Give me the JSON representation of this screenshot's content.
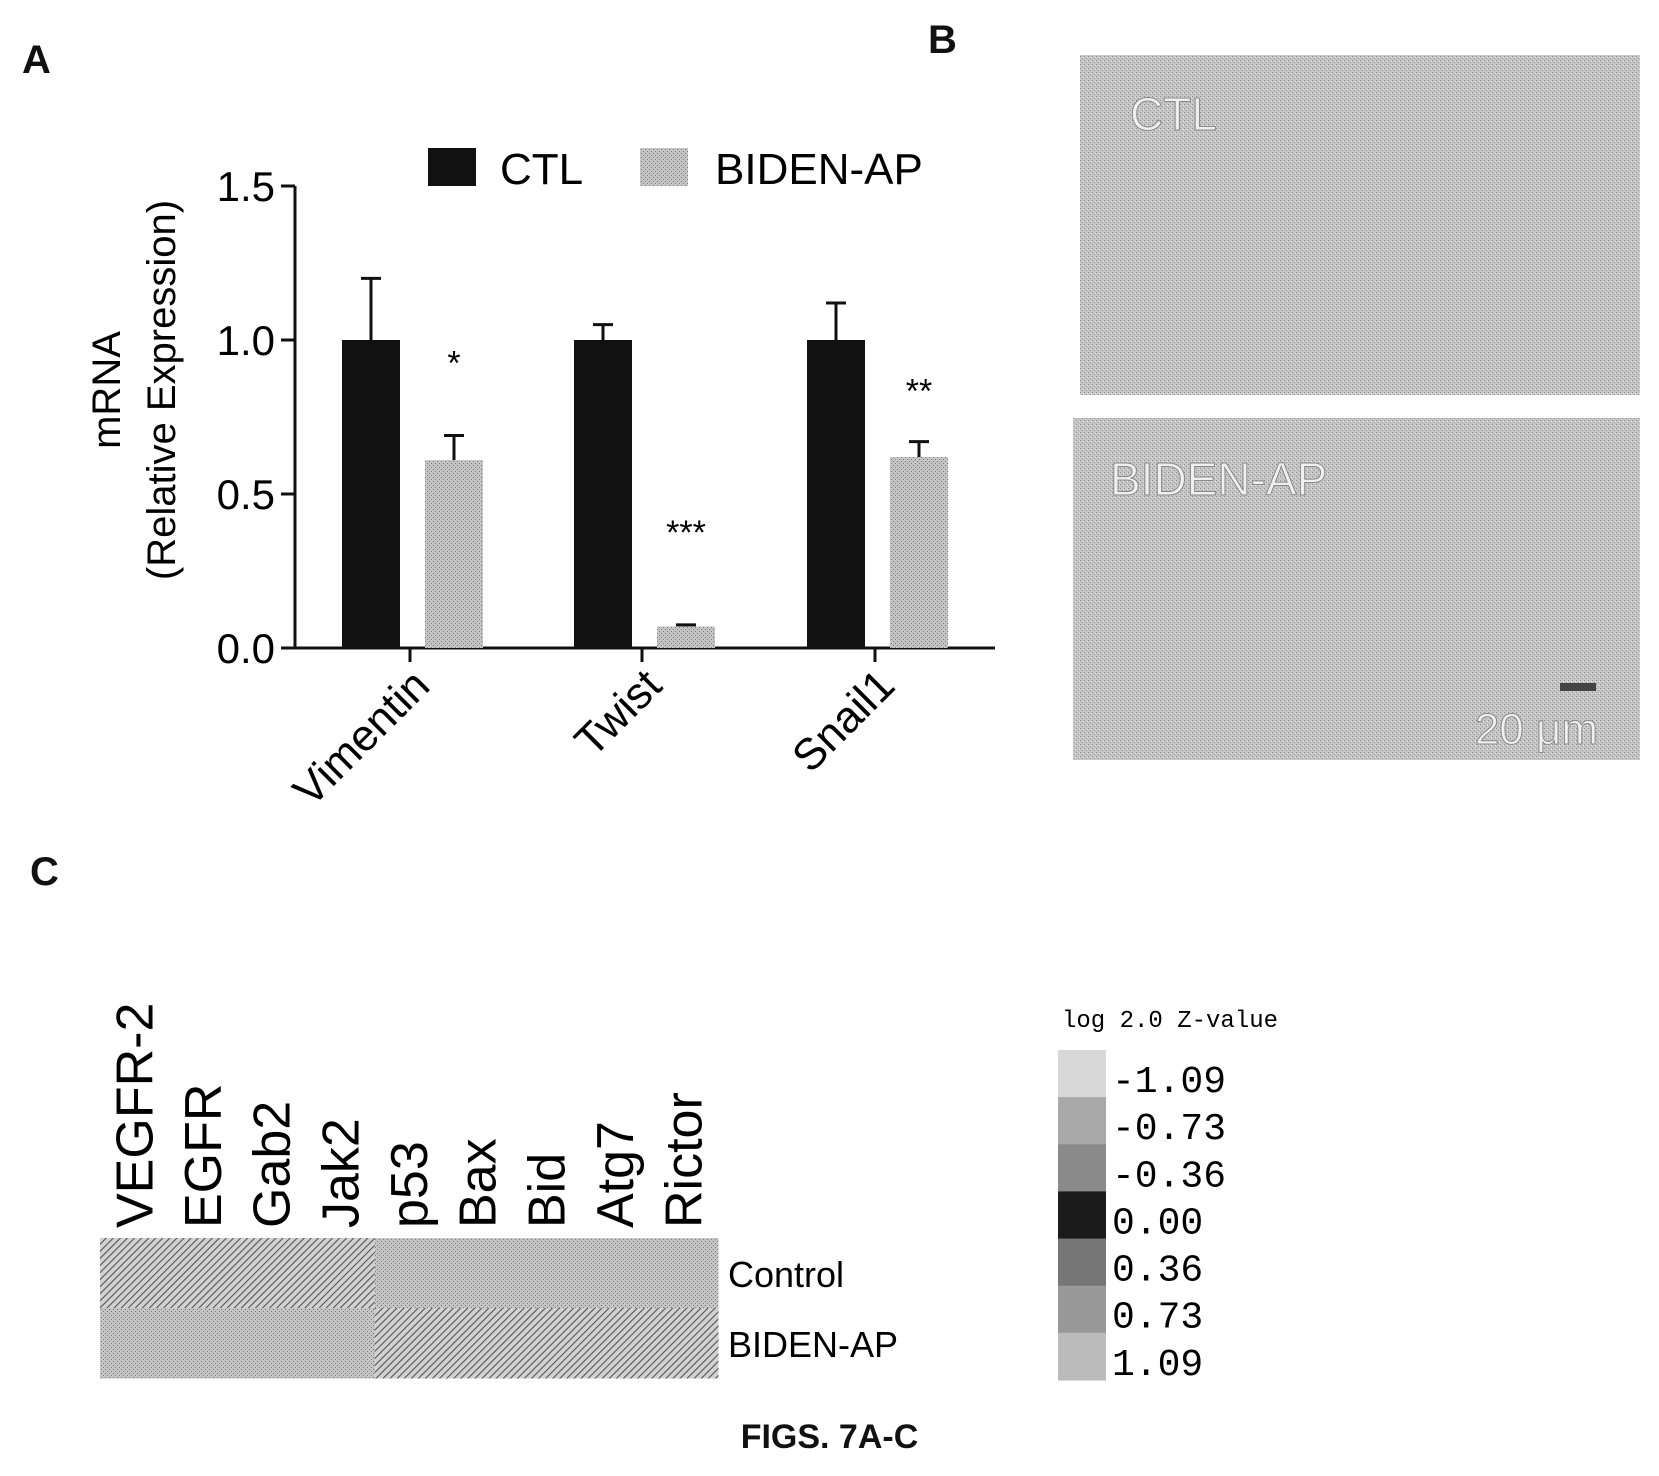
{
  "panels": {
    "a": "A",
    "b": "B",
    "c": "C"
  },
  "figure_caption": "FIGS. 7A-C",
  "colors": {
    "ctl": "#111111",
    "biden": "#b8b8b8",
    "axis": "#111111",
    "micro": "#c9c9c9"
  },
  "micrographs": [
    {
      "label": "CTL"
    },
    {
      "label": "BIDEN-AP",
      "scale_bar": "20 μm"
    }
  ],
  "chart_data": [
    {
      "type": "bar",
      "ylabel": "mRNA (Relative Expression)",
      "ylim": [
        0,
        1.5
      ],
      "yticks": [
        "0.0",
        "0.5",
        "1.0",
        "1.5"
      ],
      "categories": [
        "Vimentin",
        "Twist",
        "Snail1"
      ],
      "legend_position": "top-right",
      "series": [
        {
          "name": "CTL",
          "values": [
            1.0,
            1.0,
            1.0
          ],
          "errors": [
            0.2,
            0.05,
            0.12
          ]
        },
        {
          "name": "BIDEN-AP",
          "values": [
            0.61,
            0.07,
            0.62
          ],
          "errors": [
            0.08,
            0.005,
            0.05
          ]
        }
      ],
      "annotations": [
        "*",
        "***",
        "**"
      ]
    },
    {
      "type": "heatmap",
      "columns": [
        "VEGFR-2",
        "EGFR",
        "Gab2",
        "Jak2",
        "p53",
        "Bax",
        "Bid",
        "Atg7",
        "Rictor"
      ],
      "rows": [
        "Control",
        "BIDEN-AP"
      ],
      "values": [
        [
          1.09,
          1.09,
          1.09,
          1.09,
          -1.09,
          -1.09,
          -1.09,
          -1.09,
          -1.09
        ],
        [
          -1.09,
          -1.09,
          -1.09,
          -1.09,
          1.09,
          1.09,
          1.09,
          1.09,
          1.09
        ]
      ],
      "colorbar_title": "log 2.0 Z-value",
      "colorbar_ticks": [
        "-1.09",
        "-0.73",
        "-0.36",
        "0.00",
        "0.36",
        "0.73",
        "1.09"
      ]
    }
  ]
}
